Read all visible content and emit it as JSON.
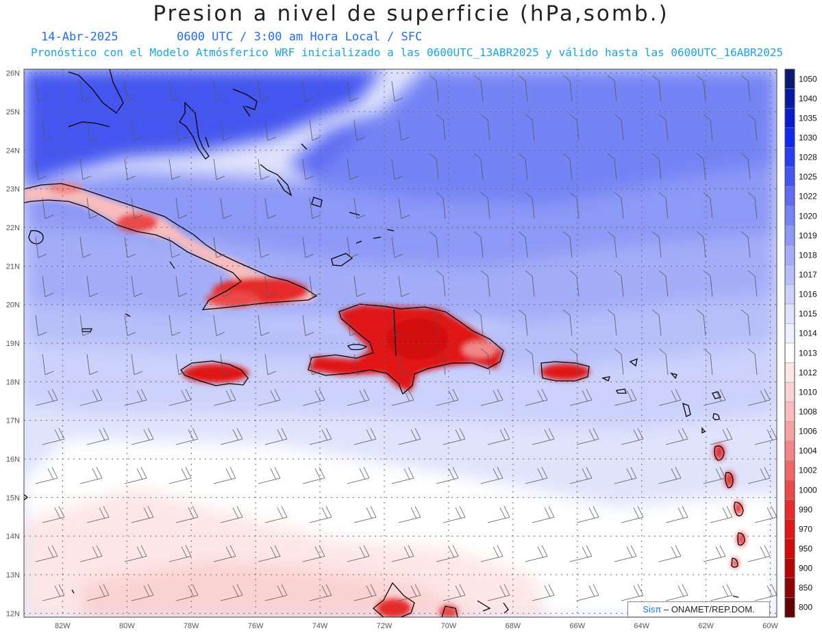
{
  "header": {
    "title": "Presion a nivel de superficie (hPa,somb.)",
    "date": "14-Abr-2025",
    "time": "0600 UTC / 3:00 am Hora Local / SFC",
    "subtitle": "Pronóstico con el Modelo Atmósferico WRF inicializado a las 0600UTC_13ABR2025 y válido hasta las  0600UTC_16ABR2025"
  },
  "map": {
    "lat_labels": [
      "26N",
      "25N",
      "24N",
      "23N",
      "22N",
      "21N",
      "20N",
      "19N",
      "18N",
      "17N",
      "16N",
      "15N",
      "14N",
      "13N",
      "12N"
    ],
    "lon_labels": [
      "82W",
      "80W",
      "78W",
      "76W",
      "74W",
      "72W",
      "70W",
      "68W",
      "66W",
      "64W",
      "62W",
      "60W"
    ],
    "extent": {
      "lon_min": -83.2,
      "lon_max": -59.8,
      "lat_min": 11.9,
      "lat_max": 26.1
    }
  },
  "colorbar": {
    "levels": [
      "1050",
      "1040",
      "1035",
      "1030",
      "1028",
      "1025",
      "1022",
      "1020",
      "1019",
      "1018",
      "1017",
      "1016",
      "1015",
      "1014",
      "1013",
      "1012",
      "1010",
      "1008",
      "1006",
      "1004",
      "1002",
      "1000",
      "990",
      "970",
      "950",
      "900",
      "850",
      "800"
    ],
    "colors": [
      "#0a1a6e",
      "#0a1aa0",
      "#0a1acc",
      "#1028f0",
      "#2a40f0",
      "#4556f0",
      "#5e6cf2",
      "#7584f4",
      "#8d99f6",
      "#a3adf8",
      "#b7bff9",
      "#cbd1fb",
      "#dfe3fc",
      "#eef0fd",
      "#ffffff",
      "#fde6e6",
      "#fbd2d2",
      "#f8bcbc",
      "#f5a2a2",
      "#f28686",
      "#ee6868",
      "#ea4a4a",
      "#e62c2c",
      "#e01818",
      "#d20a0a",
      "#b40606",
      "#8c0404",
      "#640202"
    ]
  },
  "credit": {
    "brand": "Sisπ",
    "text": " – ONAMET/REP.DOM."
  }
}
